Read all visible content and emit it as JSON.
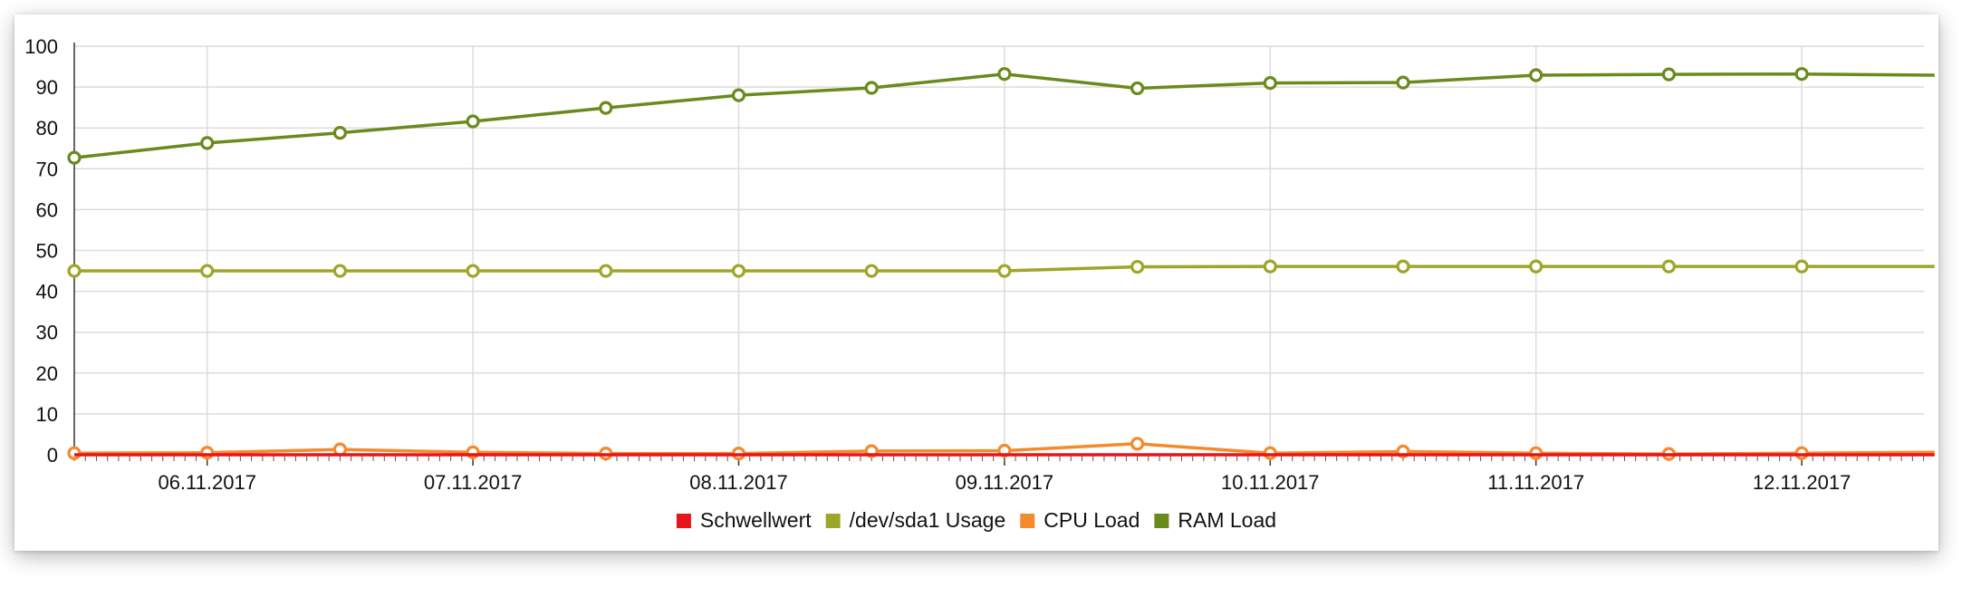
{
  "chart_data": {
    "type": "line",
    "title": "",
    "xlabel": "",
    "ylabel": "",
    "ylim": [
      0,
      100
    ],
    "yticks": [
      0,
      10,
      20,
      30,
      40,
      50,
      60,
      70,
      80,
      90,
      100
    ],
    "grid": true,
    "legend_position": "bottom-center",
    "x": [
      "05.11.2017 12:00",
      "06.11.2017 00:00",
      "06.11.2017 12:00",
      "07.11.2017 00:00",
      "07.11.2017 12:00",
      "08.11.2017 00:00",
      "08.11.2017 12:00",
      "09.11.2017 00:00",
      "09.11.2017 12:00",
      "10.11.2017 00:00",
      "10.11.2017 12:00",
      "11.11.2017 00:00",
      "11.11.2017 12:00",
      "12.11.2017 00:00",
      "12.11.2017 12:00"
    ],
    "x_tick_labels": [
      "06.11.2017",
      "07.11.2017",
      "08.11.2017",
      "09.11.2017",
      "10.11.2017",
      "11.11.2017",
      "12.11.2017"
    ],
    "series": [
      {
        "name": "Schwellwert",
        "color": "#e8141c",
        "values": [
          0,
          0,
          0,
          0,
          0,
          0,
          0,
          0,
          0,
          0,
          0,
          0,
          0,
          0,
          0
        ],
        "markers": [
          false,
          false,
          false,
          false,
          false,
          false,
          false,
          false,
          false,
          false,
          false,
          false,
          false,
          false,
          false
        ]
      },
      {
        "name": "/dev/sda1 Usage",
        "color": "#9ea628",
        "values": [
          45,
          45,
          45,
          45,
          45,
          45,
          45,
          45,
          46,
          46.1,
          46.1,
          46.1,
          46.1,
          46.1,
          46.1
        ],
        "markers": [
          true,
          true,
          true,
          true,
          true,
          true,
          true,
          true,
          true,
          true,
          true,
          true,
          true,
          true,
          false
        ]
      },
      {
        "name": "CPU Load",
        "color": "#f48a2b",
        "values": [
          0.4,
          0.5,
          1.3,
          0.6,
          0.3,
          0.3,
          0.9,
          1,
          2.7,
          0.4,
          0.8,
          0.4,
          0.2,
          0.4,
          0.6
        ],
        "markers": [
          true,
          true,
          true,
          true,
          true,
          true,
          true,
          true,
          true,
          true,
          true,
          true,
          true,
          true,
          false
        ]
      },
      {
        "name": "RAM Load",
        "color": "#6a8a1d",
        "values": [
          72.7,
          76.3,
          78.8,
          81.6,
          84.9,
          88,
          89.8,
          93.2,
          89.7,
          91,
          91.1,
          92.9,
          93.1,
          93.2,
          92.9
        ],
        "markers": [
          true,
          true,
          true,
          true,
          true,
          true,
          true,
          true,
          true,
          true,
          true,
          true,
          true,
          true,
          false
        ]
      }
    ]
  }
}
